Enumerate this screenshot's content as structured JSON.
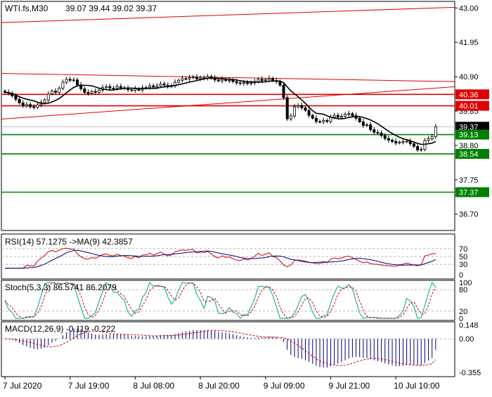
{
  "chart_data": {
    "type": "candlestick",
    "symbol": "WTI.fs,M30",
    "ohlc_header": "39.07 39.44 39.02 39.37",
    "price_axis": {
      "ylim": [
        36.2,
        43.2
      ],
      "ticks": [
        "43.00",
        "41.95",
        "40.90",
        "39.85",
        "38.80",
        "37.75",
        "36.70"
      ]
    },
    "price_labels": [
      {
        "value": 40.36,
        "text": "40.36",
        "color": "#e00000"
      },
      {
        "value": 40.01,
        "text": "40.01",
        "color": "#e00000"
      },
      {
        "value": 39.37,
        "text": "39.37",
        "color": "#000000"
      },
      {
        "value": 39.13,
        "text": "39.13",
        "color": "#008000"
      },
      {
        "value": 38.54,
        "text": "38.54",
        "color": "#008000"
      },
      {
        "value": 37.37,
        "text": "37.37",
        "color": "#008000"
      }
    ],
    "horizontal_levels": [
      {
        "value": 40.36,
        "color": "#e00000"
      },
      {
        "value": 40.01,
        "color": "#e00000"
      },
      {
        "value": 39.13,
        "color": "#008000"
      },
      {
        "value": 38.54,
        "color": "#008000"
      },
      {
        "value": 37.37,
        "color": "#008000"
      }
    ],
    "trend_lines": [
      {
        "x0": 0,
        "y0": 42.55,
        "x1": 119,
        "y1": 43.0,
        "color": "#e00000"
      },
      {
        "x0": 0,
        "y0": 41.0,
        "x1": 119,
        "y1": 40.76,
        "color": "#e00000"
      },
      {
        "x0": 0,
        "y0": 39.6,
        "x1": 119,
        "y1": 40.55,
        "color": "#e00000"
      }
    ],
    "x_ticks": [
      {
        "bar": 0,
        "label": "7 Jul 2020"
      },
      {
        "bar": 18,
        "label": "7 Jul 19:00"
      },
      {
        "bar": 36,
        "label": "8 Jul 08:00"
      },
      {
        "bar": 54,
        "label": "8 Jul 20:00"
      },
      {
        "bar": 72,
        "label": "9 Jul 09:00"
      },
      {
        "bar": 90,
        "label": "9 Jul 21:00"
      },
      {
        "bar": 108,
        "label": "10 Jul 10:00"
      }
    ],
    "close": [
      40.42,
      40.4,
      40.31,
      40.21,
      40.1,
      40.01,
      40.05,
      39.98,
      39.96,
      40.04,
      40.11,
      40.19,
      40.37,
      40.46,
      40.42,
      40.55,
      40.73,
      40.82,
      40.79,
      40.8,
      40.65,
      40.53,
      40.42,
      40.39,
      40.45,
      40.42,
      40.49,
      40.57,
      40.6,
      40.55,
      40.54,
      40.6,
      40.56,
      40.55,
      40.5,
      40.48,
      40.53,
      40.49,
      40.56,
      40.57,
      40.62,
      40.58,
      40.62,
      40.68,
      40.64,
      40.6,
      40.63,
      40.73,
      40.79,
      40.84,
      40.83,
      40.87,
      40.89,
      40.83,
      40.86,
      40.85,
      40.9,
      40.86,
      40.8,
      40.77,
      40.82,
      40.78,
      40.79,
      40.75,
      40.71,
      40.69,
      40.72,
      40.69,
      40.71,
      40.75,
      40.82,
      40.78,
      40.81,
      40.85,
      40.78,
      40.75,
      40.64,
      40.26,
      39.61,
      39.7,
      39.98,
      40.02,
      39.95,
      39.87,
      39.72,
      39.63,
      39.53,
      39.52,
      39.56,
      39.53,
      39.66,
      39.72,
      39.66,
      39.69,
      39.75,
      39.77,
      39.71,
      39.63,
      39.52,
      39.41,
      39.43,
      39.28,
      39.2,
      39.18,
      39.1,
      39.01,
      38.96,
      38.92,
      38.87,
      38.9,
      38.91,
      38.93,
      38.85,
      38.77,
      38.66,
      38.68,
      38.95,
      39.0,
      39.07,
      39.37
    ],
    "indicators": [
      {
        "name": "RSI(14)",
        "header": "RSI(14) 57.1275   ->MA(9) 42.3857",
        "ticks": [
          "70",
          "50",
          "30",
          "0"
        ]
      },
      {
        "name": "Stoch(5,3,3)",
        "header": "Stoch(5,3,3) 86.5741 86.2079",
        "ticks": [
          "100",
          "80",
          "20",
          "0"
        ]
      },
      {
        "name": "MACD(12,26,9)",
        "header": "MACD(12,26,9) -0.119 -0.222",
        "ticks": [
          "0.148",
          "0.00",
          "-0.355"
        ]
      }
    ],
    "colors": {
      "candle": "#000000",
      "ma": "#000000",
      "resistance": "#e00000",
      "support": "#008000",
      "rsi_line": "#cc0000",
      "rsi_ma": "#000080",
      "stoch_main": "#20b2aa",
      "stoch_signal": "#cc0000",
      "macd_hist": "#000080",
      "macd_signal": "#cc0000"
    }
  }
}
